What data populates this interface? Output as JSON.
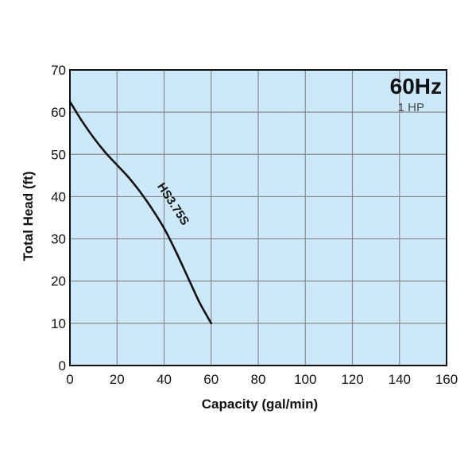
{
  "chart_data": {
    "type": "line",
    "title": "60Hz",
    "subtitle": "1 HP",
    "xlabel": "Capacity (gal/min)",
    "ylabel": "Total Head (ft)",
    "xlim": [
      0,
      160
    ],
    "ylim": [
      0,
      70
    ],
    "xticks": [
      0,
      20,
      40,
      60,
      80,
      100,
      120,
      140,
      160
    ],
    "yticks": [
      0,
      10,
      20,
      30,
      40,
      50,
      60,
      70
    ],
    "grid": true,
    "series": [
      {
        "name": "HS3.75S",
        "x": [
          0,
          5,
          10,
          15,
          20,
          25,
          30,
          35,
          40,
          45,
          50,
          55,
          60
        ],
        "y": [
          62.5,
          58,
          54,
          50.5,
          47.5,
          44.5,
          41,
          37,
          32.5,
          27,
          21,
          15,
          10
        ]
      }
    ]
  },
  "colors": {
    "plot_background": "#cce9fb",
    "grid": "#8a8a8a",
    "axis": "#111111",
    "line": "#111111"
  }
}
